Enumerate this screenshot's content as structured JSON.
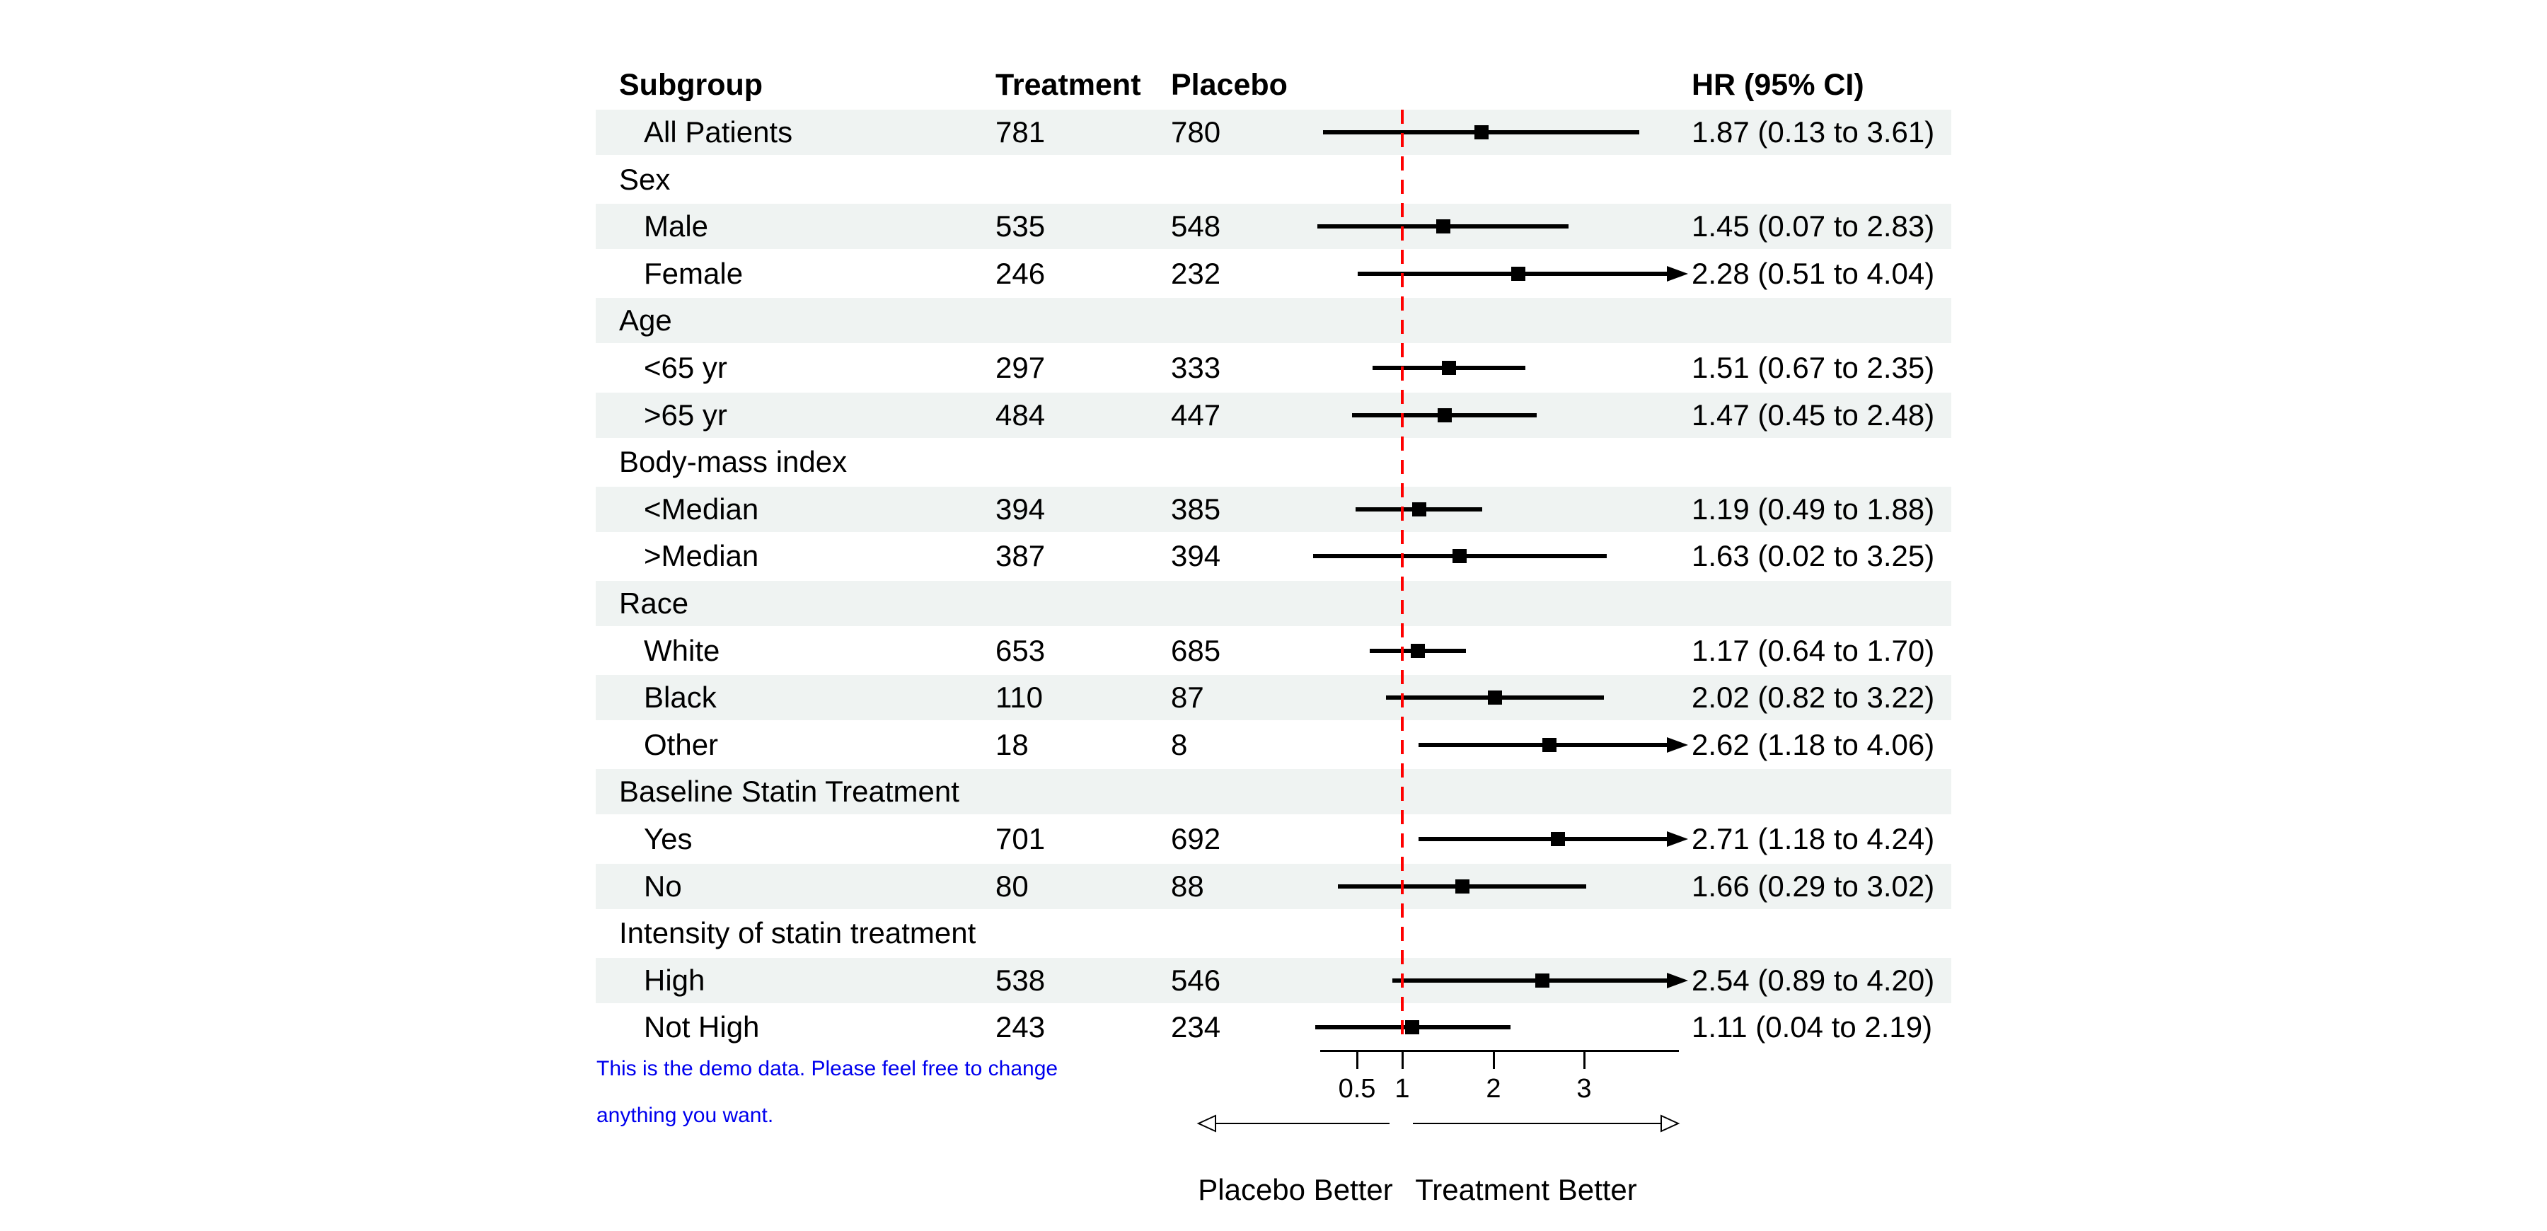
{
  "chart_data": {
    "type": "forest",
    "columns": [
      "Subgroup",
      "Treatment",
      "Placebo",
      "HR (95% CI)"
    ],
    "x_axis": {
      "scale": "linear",
      "ticks": [
        0.5,
        1,
        2,
        3
      ],
      "tick_labels": [
        "0.5",
        "1",
        "2",
        "3"
      ],
      "range": [
        0.1,
        4.0
      ],
      "reference_line": 1,
      "clip_upper": 4.0
    },
    "rows": [
      {
        "subgroup": "All Patients",
        "group": false,
        "shaded": true,
        "treatment": "781",
        "placebo": "780",
        "hr": 1.87,
        "ci_low": 0.13,
        "ci_high": 3.61,
        "hr_label": "1.87 (0.13 to 3.61)"
      },
      {
        "subgroup": "Sex",
        "group": true,
        "shaded": false
      },
      {
        "subgroup": "Male",
        "group": false,
        "shaded": true,
        "treatment": "535",
        "placebo": "548",
        "hr": 1.45,
        "ci_low": 0.07,
        "ci_high": 2.83,
        "hr_label": "1.45 (0.07 to 2.83)"
      },
      {
        "subgroup": "Female",
        "group": false,
        "shaded": false,
        "treatment": "246",
        "placebo": "232",
        "hr": 2.28,
        "ci_low": 0.51,
        "ci_high": 4.04,
        "hr_label": "2.28 (0.51 to 4.04)"
      },
      {
        "subgroup": "Age",
        "group": true,
        "shaded": true
      },
      {
        "subgroup": "<65 yr",
        "group": false,
        "shaded": false,
        "treatment": "297",
        "placebo": "333",
        "hr": 1.51,
        "ci_low": 0.67,
        "ci_high": 2.35,
        "hr_label": "1.51 (0.67 to 2.35)"
      },
      {
        "subgroup": ">65 yr",
        "group": false,
        "shaded": true,
        "treatment": "484",
        "placebo": "447",
        "hr": 1.47,
        "ci_low": 0.45,
        "ci_high": 2.48,
        "hr_label": "1.47 (0.45 to 2.48)"
      },
      {
        "subgroup": "Body-mass index",
        "group": true,
        "shaded": false
      },
      {
        "subgroup": "<Median",
        "group": false,
        "shaded": true,
        "treatment": "394",
        "placebo": "385",
        "hr": 1.19,
        "ci_low": 0.49,
        "ci_high": 1.88,
        "hr_label": "1.19 (0.49 to 1.88)"
      },
      {
        "subgroup": ">Median",
        "group": false,
        "shaded": false,
        "treatment": "387",
        "placebo": "394",
        "hr": 1.63,
        "ci_low": 0.02,
        "ci_high": 3.25,
        "hr_label": "1.63 (0.02 to 3.25)"
      },
      {
        "subgroup": "Race",
        "group": true,
        "shaded": true
      },
      {
        "subgroup": "White",
        "group": false,
        "shaded": false,
        "treatment": "653",
        "placebo": "685",
        "hr": 1.17,
        "ci_low": 0.64,
        "ci_high": 1.7,
        "hr_label": "1.17 (0.64 to 1.70)"
      },
      {
        "subgroup": "Black",
        "group": false,
        "shaded": true,
        "treatment": "110",
        "placebo": "87",
        "hr": 2.02,
        "ci_low": 0.82,
        "ci_high": 3.22,
        "hr_label": "2.02 (0.82 to 3.22)"
      },
      {
        "subgroup": "Other",
        "group": false,
        "shaded": false,
        "treatment": "18",
        "placebo": "8",
        "hr": 2.62,
        "ci_low": 1.18,
        "ci_high": 4.06,
        "hr_label": "2.62 (1.18 to 4.06)"
      },
      {
        "subgroup": "Baseline Statin Treatment",
        "group": true,
        "shaded": true
      },
      {
        "subgroup": "Yes",
        "group": false,
        "shaded": false,
        "treatment": "701",
        "placebo": "692",
        "hr": 2.71,
        "ci_low": 1.18,
        "ci_high": 4.24,
        "hr_label": "2.71 (1.18 to 4.24)"
      },
      {
        "subgroup": "No",
        "group": false,
        "shaded": true,
        "treatment": "80",
        "placebo": "88",
        "hr": 1.66,
        "ci_low": 0.29,
        "ci_high": 3.02,
        "hr_label": "1.66 (0.29 to 3.02)"
      },
      {
        "subgroup": "Intensity of statin treatment",
        "group": true,
        "shaded": false
      },
      {
        "subgroup": "High",
        "group": false,
        "shaded": true,
        "treatment": "538",
        "placebo": "546",
        "hr": 2.54,
        "ci_low": 0.89,
        "ci_high": 4.2,
        "hr_label": "2.54 (0.89 to 4.20)"
      },
      {
        "subgroup": "Not High",
        "group": false,
        "shaded": false,
        "treatment": "243",
        "placebo": "234",
        "hr": 1.11,
        "ci_low": 0.04,
        "ci_high": 2.19,
        "hr_label": "1.11 (0.04 to 2.19)"
      }
    ],
    "footer": {
      "left_arrow_label": "Placebo Better",
      "right_arrow_label": "Treatment Better"
    },
    "note": {
      "line1": "This is the demo data. Please feel free to change",
      "line2": "anything you want."
    },
    "colors": {
      "band": "#eff3f2",
      "reference_line": "#ff0000",
      "marker": "#000000",
      "note_text": "#0000ee"
    }
  }
}
